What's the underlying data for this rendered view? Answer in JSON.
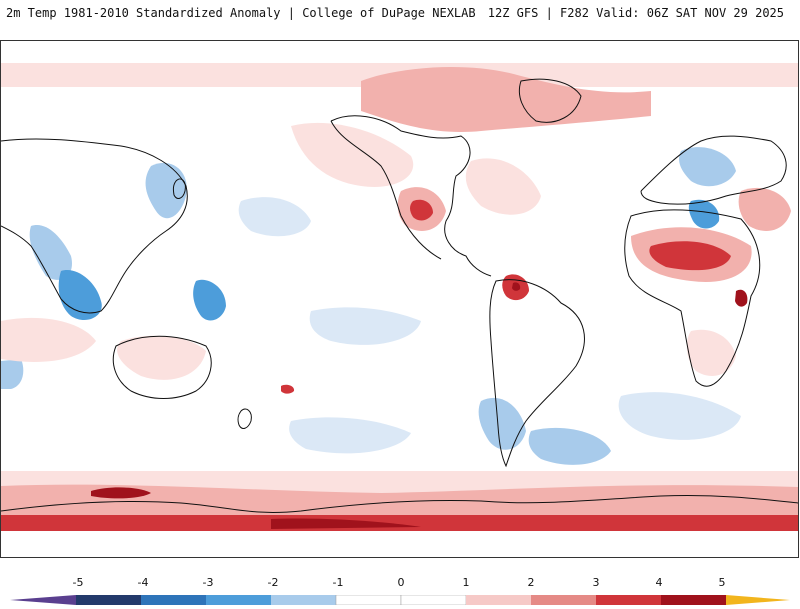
{
  "header": {
    "title_left": "2m Temp 1981-2010 Standardized Anomaly | College of DuPage NEXLAB",
    "title_right": "12Z GFS | F282 Valid: 06Z SAT NOV 29 2025"
  },
  "colorbar": {
    "labels": [
      "-5",
      "-4",
      "-3",
      "-2",
      "-1",
      "0",
      "1",
      "2",
      "3",
      "4",
      "5"
    ],
    "colors": {
      "lt_m5": "#5a3f8f",
      "m5_m4": "#233a6b",
      "m4_m3": "#2e74b9",
      "m3_m2": "#4d9dda",
      "m2_m1": "#a8cbeb",
      "m1_0": "#ffffff",
      "0_1": "#ffffff",
      "1_2": "#f6c9c7",
      "2_3": "#e58a86",
      "3_4": "#d0353a",
      "4_5": "#a0121c",
      "gt_5": "#f2b51d"
    }
  },
  "legend_colors": {
    "ocean": "#ffffff",
    "coast": "#111111",
    "warm_light": "#fbe1df",
    "warm_med": "#f2b1ad",
    "warm_strong": "#d0353a",
    "warm_extreme": "#a0121c",
    "cool_light": "#dbe8f6",
    "cool_med": "#a8cbeb",
    "cool_strong": "#4d9dda",
    "cool_extreme": "#2e74b9"
  }
}
